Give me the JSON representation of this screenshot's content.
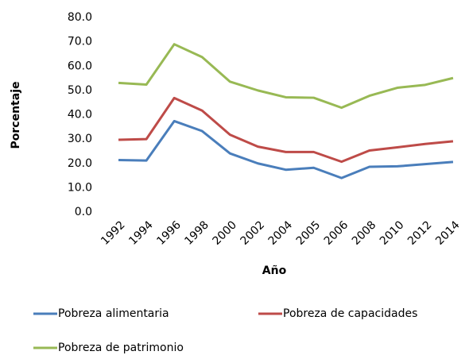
{
  "chart_data": {
    "type": "line",
    "x_label": "Año",
    "y_label": "Porcentaje",
    "categories": [
      "1992",
      "1994",
      "1996",
      "1998",
      "2000",
      "2002",
      "2004",
      "2005",
      "2006",
      "2008",
      "2010",
      "2012",
      "2014"
    ],
    "series": [
      {
        "name": "Pobreza alimentaria",
        "color": "#4a7ebb",
        "values": [
          21.4,
          21.2,
          37.4,
          33.3,
          24.1,
          20.0,
          17.4,
          18.2,
          14.0,
          18.6,
          18.8,
          19.7,
          20.6
        ]
      },
      {
        "name": "Pobreza de capacidades",
        "color": "#be4b48",
        "values": [
          29.7,
          30.0,
          46.9,
          41.7,
          31.8,
          26.9,
          24.7,
          24.7,
          20.7,
          25.3,
          26.6,
          28.0,
          29.1
        ]
      },
      {
        "name": "Pobreza de patrimonio",
        "color": "#98b954",
        "values": [
          53.1,
          52.4,
          69.0,
          63.7,
          53.6,
          50.0,
          47.2,
          47.0,
          42.9,
          47.8,
          51.1,
          52.3,
          55.1
        ]
      }
    ],
    "ylim": [
      0,
      80
    ],
    "yticks": [
      {
        "value": 0,
        "label": "0.0"
      },
      {
        "value": 10,
        "label": "10.0"
      },
      {
        "value": 20,
        "label": "20.0"
      },
      {
        "value": 30,
        "label": "30.0"
      },
      {
        "value": 40,
        "label": "40.0"
      },
      {
        "value": 50,
        "label": "50.0"
      },
      {
        "value": 60,
        "label": "60.0"
      },
      {
        "value": 70,
        "label": "70.0"
      },
      {
        "value": 80,
        "label": "80.0"
      }
    ],
    "grid": false
  }
}
